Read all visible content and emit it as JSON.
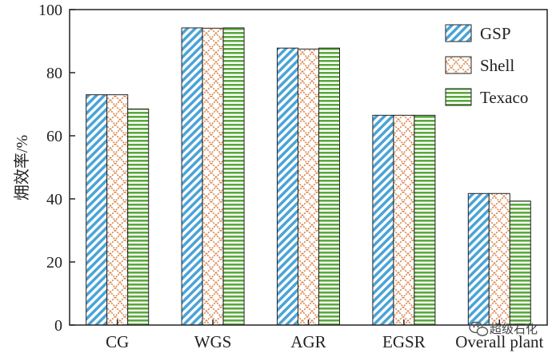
{
  "chart_data": {
    "type": "bar",
    "categories": [
      "CG",
      "WGS",
      "AGR",
      "EGSR",
      "Overall plant"
    ],
    "series": [
      {
        "name": "GSP",
        "values": [
          73,
          94.2,
          87.8,
          66.5,
          41.7
        ]
      },
      {
        "name": "Shell",
        "values": [
          73,
          94.1,
          87.5,
          66.5,
          41.7
        ]
      },
      {
        "name": "Texaco",
        "values": [
          68.5,
          94.2,
          87.8,
          66.5,
          39.3
        ]
      }
    ],
    "ylabel": "㶲效率/%",
    "xlabel": "",
    "ylim": [
      0,
      100
    ],
    "yticks": [
      0,
      20,
      40,
      60,
      80,
      100
    ],
    "legend_position": "top-right",
    "grid": false,
    "colors": {
      "GSP": "#4aa3d6",
      "Shell": "#d9874f",
      "Texaco": "#5aa83c"
    }
  },
  "watermark": {
    "text": "超级石化",
    "icon": "wechat-icon"
  }
}
